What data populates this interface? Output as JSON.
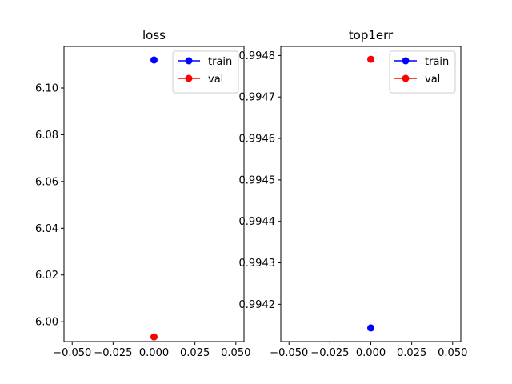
{
  "chart_data": [
    {
      "type": "scatter",
      "title": "loss",
      "xlabel": "",
      "ylabel": "",
      "xlim": [
        -0.055,
        0.055
      ],
      "ylim": [
        5.9915,
        6.1178
      ],
      "xticks": [
        -0.05,
        -0.025,
        0.0,
        0.025,
        0.05
      ],
      "xtick_labels": [
        "−0.050",
        "−0.025",
        "0.000",
        "0.025",
        "0.050"
      ],
      "yticks": [
        6.0,
        6.02,
        6.04,
        6.06,
        6.08,
        6.1
      ],
      "ytick_labels": [
        "6.00",
        "6.02",
        "6.04",
        "6.06",
        "6.08",
        "6.10"
      ],
      "legend_position": "upper-right",
      "grid": false,
      "series": [
        {
          "name": "train",
          "color": "#0000ff",
          "x": [
            0.0
          ],
          "y": [
            6.112
          ]
        },
        {
          "name": "val",
          "color": "#ff0000",
          "x": [
            0.0
          ],
          "y": [
            5.9935
          ]
        }
      ]
    },
    {
      "type": "scatter",
      "title": "top1err",
      "xlabel": "",
      "ylabel": "",
      "xlim": [
        -0.055,
        0.055
      ],
      "ylim": [
        0.99411,
        0.994822
      ],
      "xticks": [
        -0.05,
        -0.025,
        0.0,
        0.025,
        0.05
      ],
      "xtick_labels": [
        "−0.050",
        "−0.025",
        "0.000",
        "0.025",
        "0.050"
      ],
      "yticks": [
        0.9942,
        0.9943,
        0.9944,
        0.9945,
        0.9946,
        0.9947,
        0.9948
      ],
      "ytick_labels": [
        "0.9942",
        "0.9943",
        "0.9944",
        "0.9945",
        "0.9946",
        "0.9947",
        "0.9948"
      ],
      "legend_position": "upper-right",
      "grid": false,
      "series": [
        {
          "name": "train",
          "color": "#0000ff",
          "x": [
            0.0
          ],
          "y": [
            0.994143
          ]
        },
        {
          "name": "val",
          "color": "#ff0000",
          "x": [
            0.0
          ],
          "y": [
            0.994791
          ]
        }
      ]
    }
  ]
}
